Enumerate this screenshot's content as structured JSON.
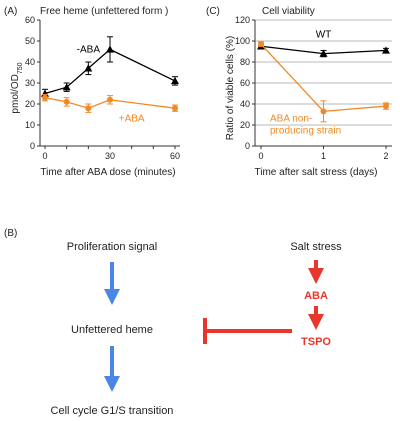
{
  "panels": {
    "a_letter": "(A)",
    "c_letter": "(C)",
    "b_letter": "(B)"
  },
  "chart_data": [
    {
      "type": "line",
      "title": "Free  heme (unfettered form )",
      "xlabel": "Time after ABA dose (minutes)",
      "ylabel_main": "pmol/OD",
      "ylabel_sub": "750",
      "xlim": [
        0,
        60
      ],
      "ylim": [
        0,
        60
      ],
      "xticks": [
        0,
        10,
        20,
        30,
        40,
        50,
        60
      ],
      "xtick_labels": [
        "0",
        "",
        "",
        "30",
        "",
        "",
        "60"
      ],
      "yticks": [
        0,
        10,
        20,
        30,
        40,
        50,
        60
      ],
      "series": [
        {
          "name": "-ABA",
          "color": "#000000",
          "marker": "triangle",
          "x": [
            0,
            10,
            20,
            30,
            60
          ],
          "y": [
            25,
            28,
            37,
            46,
            31
          ],
          "err": [
            2,
            2,
            3,
            6,
            2
          ]
        },
        {
          "name": "+ABA",
          "color": "#f08a24",
          "marker": "circle",
          "x": [
            0,
            10,
            20,
            30,
            60
          ],
          "y": [
            23,
            21,
            18,
            22,
            18
          ],
          "err": [
            1.5,
            2,
            2,
            2,
            1.5
          ]
        }
      ]
    },
    {
      "type": "line",
      "title": "Cell viability",
      "xlabel": "Time after salt stress (days)",
      "ylabel": "Ratio of viable cells (%)",
      "xlim": [
        0,
        2
      ],
      "ylim": [
        0,
        120
      ],
      "xticks": [
        0,
        1,
        2
      ],
      "xtick_labels": [
        "0",
        "1",
        "2"
      ],
      "yticks": [
        0,
        20,
        40,
        60,
        80,
        100,
        120
      ],
      "series": [
        {
          "name": "WT",
          "color": "#000000",
          "marker": "triangle",
          "x": [
            0,
            1,
            2
          ],
          "y": [
            95,
            88,
            91
          ],
          "err": [
            2,
            3,
            2
          ]
        },
        {
          "name_lines": [
            "ABA non-",
            "producing strain"
          ],
          "color": "#f08a24",
          "marker": "circle",
          "x": [
            0,
            1,
            2
          ],
          "y": [
            97,
            33,
            38
          ],
          "err": [
            2,
            10,
            3
          ]
        }
      ]
    }
  ],
  "diagram": {
    "left_top": "Proliferation signal",
    "left_mid": "Unfettered heme",
    "left_bottom": "Cell cycle G1/S transition",
    "right_top": "Salt stress",
    "right_mid": "ABA",
    "right_bottom": "TSPO"
  }
}
